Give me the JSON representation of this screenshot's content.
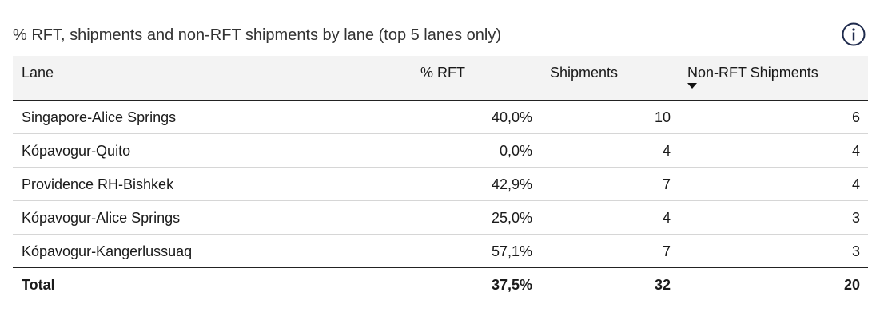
{
  "title": "% RFT, shipments and non-RFT shipments by lane (top 5 lanes only)",
  "table": {
    "columns": [
      "Lane",
      "% RFT",
      "Shipments",
      "Non-RFT Shipments"
    ],
    "rows": [
      [
        "Singapore-Alice Springs",
        "40,0%",
        "10",
        "6"
      ],
      [
        "Kópavogur-Quito",
        "0,0%",
        "4",
        "4"
      ],
      [
        "Providence RH-Bishkek",
        "42,9%",
        "7",
        "4"
      ],
      [
        "Kópavogur-Alice Springs",
        "25,0%",
        "4",
        "3"
      ],
      [
        "Kópavogur-Kangerlussuaq",
        "57,1%",
        "7",
        "3"
      ]
    ],
    "total": [
      "Total",
      "37,5%",
      "32",
      "20"
    ]
  }
}
